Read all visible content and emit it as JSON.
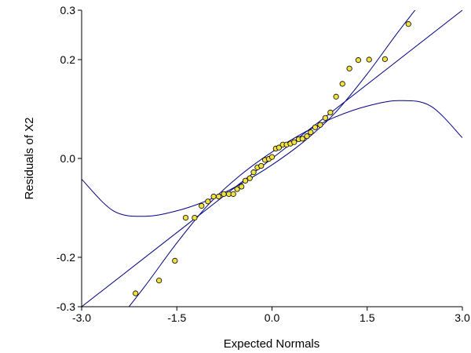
{
  "chart_data": {
    "type": "scatter",
    "title": "",
    "xlabel": "Expected Normals",
    "ylabel": "Residuals of X2",
    "xlim": [
      -3.0,
      3.0
    ],
    "ylim": [
      -0.3,
      0.3
    ],
    "x_ticks": [
      "-3.0",
      "-1.5",
      "0.0",
      "1.5",
      "3.0"
    ],
    "y_ticks": [
      "0.3",
      "0.2",
      "0.0",
      "-0.2",
      "-0.3"
    ],
    "x_tick_values": [
      -3.0,
      -1.5,
      0.0,
      1.5,
      3.0
    ],
    "y_tick_values": [
      0.3,
      0.2,
      0.0,
      -0.2,
      -0.3
    ],
    "grid": false,
    "marker_color": "#f0e040",
    "line_color": "#000080",
    "points": [
      {
        "x": -2.15,
        "y": -0.273
      },
      {
        "x": -1.78,
        "y": -0.247
      },
      {
        "x": -1.53,
        "y": -0.207
      },
      {
        "x": -1.36,
        "y": -0.12
      },
      {
        "x": -1.22,
        "y": -0.12
      },
      {
        "x": -1.11,
        "y": -0.096
      },
      {
        "x": -1.01,
        "y": -0.087
      },
      {
        "x": -0.92,
        "y": -0.077
      },
      {
        "x": -0.84,
        "y": -0.077
      },
      {
        "x": -0.76,
        "y": -0.072
      },
      {
        "x": -0.68,
        "y": -0.072
      },
      {
        "x": -0.61,
        "y": -0.072
      },
      {
        "x": -0.55,
        "y": -0.062
      },
      {
        "x": -0.48,
        "y": -0.057
      },
      {
        "x": -0.42,
        "y": -0.045
      },
      {
        "x": -0.35,
        "y": -0.04
      },
      {
        "x": -0.29,
        "y": -0.028
      },
      {
        "x": -0.23,
        "y": -0.018
      },
      {
        "x": -0.17,
        "y": -0.015
      },
      {
        "x": -0.11,
        "y": -0.003
      },
      {
        "x": -0.05,
        "y": -0.001
      },
      {
        "x": 0.0,
        "y": 0.003
      },
      {
        "x": 0.06,
        "y": 0.02
      },
      {
        "x": 0.11,
        "y": 0.022
      },
      {
        "x": 0.17,
        "y": 0.028
      },
      {
        "x": 0.23,
        "y": 0.028
      },
      {
        "x": 0.29,
        "y": 0.03
      },
      {
        "x": 0.35,
        "y": 0.033
      },
      {
        "x": 0.42,
        "y": 0.039
      },
      {
        "x": 0.48,
        "y": 0.04
      },
      {
        "x": 0.55,
        "y": 0.045
      },
      {
        "x": 0.61,
        "y": 0.053
      },
      {
        "x": 0.68,
        "y": 0.063
      },
      {
        "x": 0.76,
        "y": 0.068
      },
      {
        "x": 0.84,
        "y": 0.082
      },
      {
        "x": 0.92,
        "y": 0.093
      },
      {
        "x": 1.01,
        "y": 0.125
      },
      {
        "x": 1.11,
        "y": 0.151
      },
      {
        "x": 1.22,
        "y": 0.182
      },
      {
        "x": 1.36,
        "y": 0.199
      },
      {
        "x": 1.53,
        "y": 0.2
      },
      {
        "x": 1.78,
        "y": 0.201
      },
      {
        "x": 2.15,
        "y": 0.272
      }
    ],
    "fit_line": {
      "intercept": 0.0,
      "slope": 0.1
    },
    "upper_band": [
      {
        "x": -3.0,
        "y": -0.042
      },
      {
        "x": -2.5,
        "y": -0.106
      },
      {
        "x": -2.0,
        "y": -0.117
      },
      {
        "x": -1.5,
        "y": -0.106
      },
      {
        "x": -1.0,
        "y": -0.084
      },
      {
        "x": -0.5,
        "y": -0.052
      },
      {
        "x": 0.0,
        "y": -0.013
      },
      {
        "x": 0.5,
        "y": 0.034
      },
      {
        "x": 1.0,
        "y": 0.093
      },
      {
        "x": 1.5,
        "y": 0.171
      },
      {
        "x": 2.0,
        "y": 0.258
      },
      {
        "x": 2.5,
        "y": 0.34
      },
      {
        "x": 3.0,
        "y": 0.42
      }
    ],
    "lower_band": [
      {
        "x": -3.0,
        "y": -0.42
      },
      {
        "x": -2.5,
        "y": -0.34
      },
      {
        "x": -2.0,
        "y": -0.258
      },
      {
        "x": -1.5,
        "y": -0.171
      },
      {
        "x": -1.0,
        "y": -0.093
      },
      {
        "x": -0.5,
        "y": -0.034
      },
      {
        "x": 0.0,
        "y": 0.013
      },
      {
        "x": 0.5,
        "y": 0.052
      },
      {
        "x": 1.0,
        "y": 0.084
      },
      {
        "x": 1.5,
        "y": 0.106
      },
      {
        "x": 2.0,
        "y": 0.117
      },
      {
        "x": 2.5,
        "y": 0.106
      },
      {
        "x": 3.0,
        "y": 0.042
      }
    ]
  }
}
